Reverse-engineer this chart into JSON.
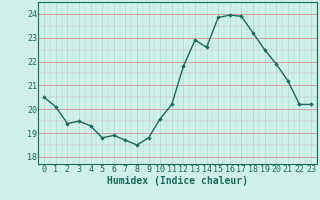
{
  "x": [
    0,
    1,
    2,
    3,
    4,
    5,
    6,
    7,
    8,
    9,
    10,
    11,
    12,
    13,
    14,
    15,
    16,
    17,
    18,
    19,
    20,
    21,
    22,
    23
  ],
  "y": [
    20.5,
    20.1,
    19.4,
    19.5,
    19.3,
    18.8,
    18.9,
    18.7,
    18.5,
    18.8,
    19.6,
    20.2,
    21.8,
    22.9,
    22.6,
    23.85,
    23.95,
    23.9,
    23.2,
    22.5,
    21.9,
    21.2,
    20.2,
    20.2
  ],
  "line_color": "#1a6b5a",
  "marker": "D",
  "marker_size": 1.8,
  "linewidth": 1.0,
  "bg_color": "#cef0e8",
  "grid_color_h": "#d4a0a0",
  "grid_color_v": "#a8d8d0",
  "xlabel": "Humidex (Indice chaleur)",
  "xlabel_fontsize": 7,
  "xlabel_fontweight": "bold",
  "xlabel_color": "#1a6b5a",
  "yticks": [
    18,
    19,
    20,
    21,
    22,
    23,
    24
  ],
  "xticks": [
    0,
    1,
    2,
    3,
    4,
    5,
    6,
    7,
    8,
    9,
    10,
    11,
    12,
    13,
    14,
    15,
    16,
    17,
    18,
    19,
    20,
    21,
    22,
    23
  ],
  "ylim": [
    17.7,
    24.5
  ],
  "xlim": [
    -0.5,
    23.5
  ],
  "tick_fontsize": 6,
  "tick_color": "#1a6b5a",
  "spine_color": "#1a6b5a"
}
